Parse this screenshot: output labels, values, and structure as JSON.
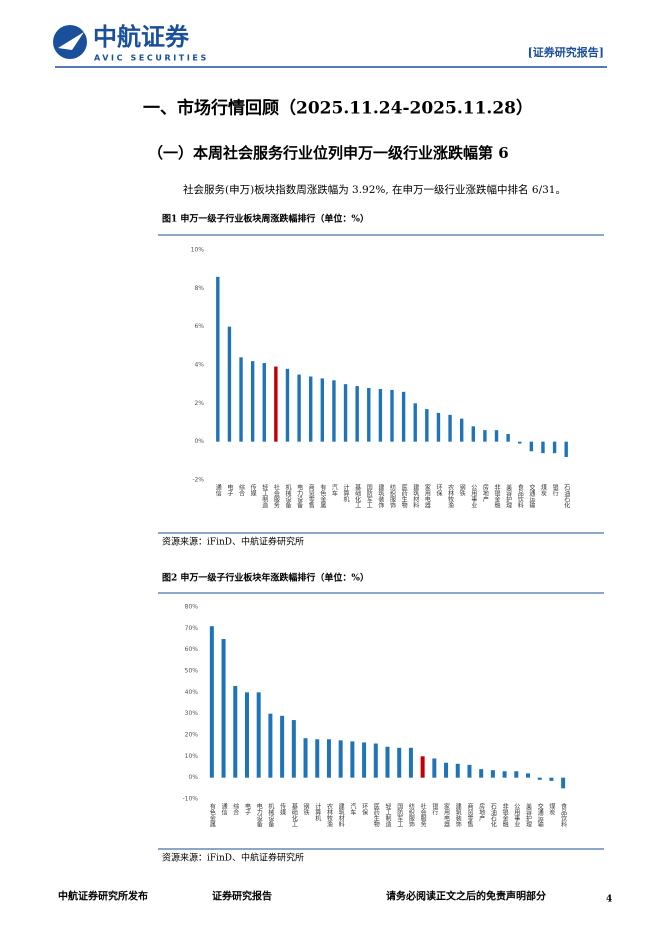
{
  "header": {
    "logo_cn": "中航证券",
    "logo_en": "AVIC SECURITIES",
    "tag": "[证券研究报告]"
  },
  "heading1": "一、市场行情回顾（2025.11.24-2025.11.28）",
  "heading2": "（一）本周社会服务行业位列申万一级行业涨跌幅第 6",
  "paragraph": "社会服务(申万)板块指数周涨跌幅为 3.92%, 在申万一级行业涨跌幅中排名 6/31。",
  "chart_data": [
    {
      "type": "bar",
      "title": "图1  申万一级子行业板块周涨跌幅排行（单位：%）",
      "source": "资源来源：iFinD、中航证券研究所",
      "categories": [
        "通信",
        "电子",
        "综合",
        "传媒",
        "轻工制造",
        "社会服务",
        "机械设备",
        "电力设备",
        "商贸零售",
        "有色金属",
        "汽车",
        "计算机",
        "基础化工",
        "国防军工",
        "建筑装饰",
        "纺织服饰",
        "医药生物",
        "建筑材料",
        "家用电器",
        "环保",
        "农林牧渔",
        "钢铁",
        "公用事业",
        "房地产",
        "非银金融",
        "美容护理",
        "食品饮料",
        "交通运输",
        "煤炭",
        "银行",
        "石油石化"
      ],
      "values": [
        8.6,
        6.0,
        4.4,
        4.2,
        4.1,
        3.92,
        3.8,
        3.5,
        3.4,
        3.3,
        3.2,
        3.0,
        2.9,
        2.8,
        2.75,
        2.7,
        2.6,
        2.0,
        1.7,
        1.5,
        1.4,
        1.2,
        0.8,
        0.6,
        0.6,
        0.4,
        -0.1,
        -0.5,
        -0.6,
        -0.6,
        -0.8
      ],
      "colors": [
        "#1f73b7",
        "#1f73b7",
        "#1f73b7",
        "#1f73b7",
        "#1f73b7",
        "#c00000",
        "#1f73b7",
        "#1f73b7",
        "#1f73b7",
        "#1f73b7",
        "#1f73b7",
        "#1f73b7",
        "#1f73b7",
        "#1f73b7",
        "#1f73b7",
        "#1f73b7",
        "#1f73b7",
        "#1f73b7",
        "#1f73b7",
        "#1f73b7",
        "#1f73b7",
        "#1f73b7",
        "#1f73b7",
        "#1f73b7",
        "#1f73b7",
        "#1f73b7",
        "#1f73b7",
        "#1f73b7",
        "#1f73b7",
        "#1f73b7",
        "#1f73b7"
      ],
      "ylim": [
        -2,
        10
      ],
      "yticks": [
        {
          "value": -2,
          "label": "-2%"
        },
        {
          "value": 0,
          "label": "0%"
        },
        {
          "value": 2,
          "label": "2%"
        },
        {
          "value": 4,
          "label": "4%"
        },
        {
          "value": 6,
          "label": "6%"
        },
        {
          "value": 8,
          "label": "8%"
        },
        {
          "value": 10,
          "label": "10%"
        }
      ]
    },
    {
      "type": "bar",
      "title": "图2  申万一级子行业板块年涨跌幅排行（单位：%）",
      "source": "资源来源：iFinD、中航证券研究所",
      "categories": [
        "有色金属",
        "通信",
        "综合",
        "电子",
        "电力设备",
        "机械设备",
        "传媒",
        "基础化工",
        "钢铁",
        "计算机",
        "农林牧渔",
        "建筑材料",
        "汽车",
        "环保",
        "医药生物",
        "轻工制造",
        "国防军工",
        "纺织服饰",
        "社会服务",
        "银行",
        "家用电器",
        "建筑装饰",
        "商贸零售",
        "房地产",
        "石油石化",
        "非银金融",
        "公用事业",
        "美容护理",
        "交通运输",
        "煤炭",
        "食品饮料"
      ],
      "values": [
        71,
        65,
        43,
        40,
        40,
        30,
        29,
        27,
        18.5,
        18,
        18,
        17.5,
        17,
        16.5,
        16,
        14.5,
        14,
        14,
        10,
        9,
        7,
        6.5,
        6,
        4,
        3.5,
        3,
        3,
        2,
        -1,
        -1.5,
        -5
      ],
      "colors": [
        "#1f73b7",
        "#1f73b7",
        "#1f73b7",
        "#1f73b7",
        "#1f73b7",
        "#1f73b7",
        "#1f73b7",
        "#1f73b7",
        "#1f73b7",
        "#1f73b7",
        "#1f73b7",
        "#1f73b7",
        "#1f73b7",
        "#1f73b7",
        "#1f73b7",
        "#1f73b7",
        "#1f73b7",
        "#1f73b7",
        "#c00000",
        "#1f73b7",
        "#1f73b7",
        "#1f73b7",
        "#1f73b7",
        "#1f73b7",
        "#1f73b7",
        "#1f73b7",
        "#1f73b7",
        "#1f73b7",
        "#1f73b7",
        "#1f73b7",
        "#1f73b7"
      ],
      "ylim": [
        -10,
        80
      ],
      "yticks": [
        {
          "value": -10,
          "label": "-10%"
        },
        {
          "value": 0,
          "label": "0%"
        },
        {
          "value": 10,
          "label": "10%"
        },
        {
          "value": 20,
          "label": "20%"
        },
        {
          "value": 30,
          "label": "30%"
        },
        {
          "value": 40,
          "label": "40%"
        },
        {
          "value": 50,
          "label": "50%"
        },
        {
          "value": 60,
          "label": "60%"
        },
        {
          "value": 70,
          "label": "70%"
        },
        {
          "value": 80,
          "label": "80%"
        }
      ]
    }
  ],
  "footer": {
    "left": "中航证券研究所发布",
    "middle": "证券研究报告",
    "right": "请务必阅读正文之后的免责声明部分",
    "page": "4"
  }
}
